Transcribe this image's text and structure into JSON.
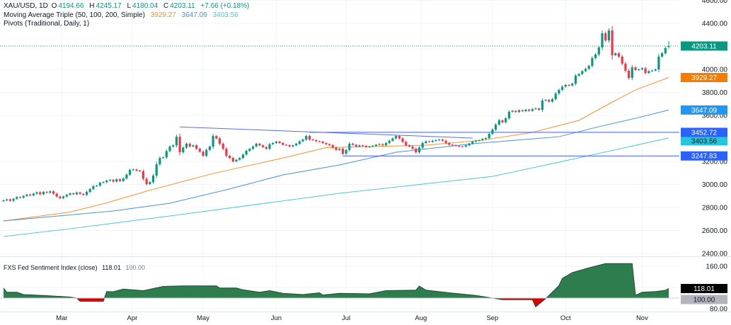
{
  "header": {
    "symbol": "XAU/USD, 1D",
    "open_label": "O",
    "open": "4194.66",
    "high_label": "H",
    "high": "4245.17",
    "low_label": "L",
    "low": "4180.04",
    "close_label": "C",
    "close": "4203.11",
    "change": "+7.66 (+0.18%)",
    "ma_title": "Moving Average Triple (50, 100, 200, Simple)",
    "ma50": "3929.27",
    "ma100": "3647.09",
    "ma200": "3403.56",
    "pivots_title": "Pivots (Traditional, Daily, 1)",
    "indicator_title": "FXS Fed Sentiment Index (close)",
    "indicator_value": "118.01",
    "indicator_base": "100.00"
  },
  "colors": {
    "up": "#089981",
    "down": "#f23645",
    "ma50": "#f7922d",
    "ma100": "#4a90d9",
    "ma200": "#4dc7d6",
    "pivot": "#3d5afe",
    "trendline": "#5b6fd6",
    "sentiment_up": "#2e7d4f",
    "sentiment_down": "#e00000"
  },
  "chart_data": [
    {
      "type": "candlestick",
      "title": "XAU/USD, 1D",
      "ylim": [
        2400,
        4600
      ],
      "y_ticks": [
        "4600.00",
        "4400.00",
        "4000.00",
        "3800.00",
        "3600.00",
        "3200.00",
        "3000.00",
        "2800.00",
        "2600.00",
        "2400.00"
      ],
      "x_ticks": [
        {
          "label": "Mar",
          "bar": 17.5
        },
        {
          "label": "Apr",
          "bar": 38.7
        },
        {
          "label": "May",
          "bar": 60
        },
        {
          "label": "Jun",
          "bar": 82
        },
        {
          "label": "Jul",
          "bar": 103
        },
        {
          "label": "Aug",
          "bar": 125.5
        },
        {
          "label": "Sep",
          "bar": 147
        },
        {
          "label": "Oct",
          "bar": 169
        },
        {
          "label": "Nov",
          "bar": 192
        }
      ],
      "last_bar": {
        "open": 4194.66,
        "high": 4245.17,
        "low": 4180.04,
        "close": 4203.11
      },
      "closes": [
        2862,
        2870,
        2858,
        2875,
        2890,
        2885,
        2900,
        2912,
        2905,
        2920,
        2932,
        2915,
        2935,
        2928,
        2940,
        2920,
        2895,
        2880,
        2895,
        2910,
        2923,
        2915,
        2930,
        2918,
        2910,
        2935,
        2960,
        2985,
        2990,
        3015,
        3020,
        3034,
        3040,
        3025,
        3045,
        3030,
        3052,
        3085,
        3126,
        3130,
        3120,
        3114,
        3050,
        3003,
        3020,
        3077,
        3175,
        3230,
        3235,
        3290,
        3329,
        3340,
        3415,
        3280,
        3320,
        3354,
        3330,
        3340,
        3310,
        3285,
        3249,
        3300,
        3329,
        3421,
        3400,
        3354,
        3310,
        3249,
        3230,
        3200,
        3215,
        3230,
        3260,
        3292,
        3310,
        3330,
        3354,
        3340,
        3325,
        3310,
        3350,
        3360,
        3372,
        3360,
        3345,
        3341,
        3330,
        3340,
        3354,
        3375,
        3390,
        3421,
        3390,
        3385,
        3375,
        3372,
        3360,
        3350,
        3341,
        3320,
        3300,
        3310,
        3268,
        3300,
        3354,
        3345,
        3330,
        3340,
        3335,
        3325,
        3329,
        3335,
        3345,
        3350,
        3341,
        3360,
        3380,
        3400,
        3421,
        3400,
        3370,
        3341,
        3330,
        3310,
        3280,
        3320,
        3360,
        3375,
        3370,
        3380,
        3385,
        3390,
        3380,
        3360,
        3345,
        3341,
        3335,
        3330,
        3329,
        3340,
        3355,
        3372,
        3380,
        3385,
        3395,
        3403,
        3440,
        3477,
        3520,
        3557,
        3540,
        3575,
        3631,
        3640,
        3630,
        3645,
        3637,
        3650,
        3640,
        3655,
        3661,
        3649,
        3729,
        3735,
        3720,
        3742,
        3790,
        3822,
        3850,
        3865,
        3860,
        3877,
        3945,
        3960,
        3985,
        4005,
        4031,
        4098,
        4130,
        4191,
        4314,
        4252,
        4338,
        4123,
        4140,
        4111,
        4050,
        3988,
        3926,
        4018,
        3995,
        4000,
        4010,
        3969,
        3985,
        3990,
        4000,
        4111,
        4140,
        4185,
        4203.11
      ],
      "moving_averages": [
        {
          "name": "MA 50",
          "value_label": "3929.27",
          "points": [
            [
              0,
              2683
            ],
            [
              20,
              2760
            ],
            [
              31,
              2840
            ],
            [
              44,
              2950
            ],
            [
              63,
              3095
            ],
            [
              84,
              3230
            ],
            [
              97,
              3320
            ],
            [
              110,
              3329
            ],
            [
              127,
              3341
            ],
            [
              144,
              3385
            ],
            [
              159,
              3452
            ],
            [
              173,
              3557
            ],
            [
              182,
              3700
            ],
            [
              190,
              3822
            ],
            [
              200,
              3929.27
            ]
          ]
        },
        {
          "name": "MA 100",
          "value_label": "3647.09",
          "points": [
            [
              0,
              2683
            ],
            [
              33,
              2769
            ],
            [
              50,
              2837
            ],
            [
              67,
              2954
            ],
            [
              84,
              3083
            ],
            [
              101,
              3169
            ],
            [
              118,
              3280
            ],
            [
              141,
              3354
            ],
            [
              167,
              3415
            ],
            [
              178,
              3495
            ],
            [
              190,
              3575
            ],
            [
              200,
              3647.09
            ]
          ]
        },
        {
          "name": "MA 200",
          "value_label": "3403.56",
          "points": [
            [
              0,
              2548
            ],
            [
              20,
              2615
            ],
            [
              50,
              2726
            ],
            [
              101,
              2923
            ],
            [
              147,
              3070
            ],
            [
              166,
              3188
            ],
            [
              200,
              3403.56
            ]
          ]
        }
      ],
      "pivot_levels": [
        {
          "value": 3452.72,
          "label": "3452.72",
          "from_bar": 92
        },
        {
          "value": 3247.83,
          "label": "3247.83",
          "from_bar": 102
        }
      ],
      "trendline": {
        "from": [
          53,
          3500
        ],
        "to": [
          141,
          3403
        ]
      },
      "last_price_label": "4203.11"
    },
    {
      "type": "area",
      "title": "FXS Fed Sentiment Index (close)",
      "baseline": 100,
      "y_ticks": [
        "160.00",
        "80.00"
      ],
      "value_label": "118.01",
      "baseline_label": "100.00",
      "points": [
        [
          0,
          119
        ],
        [
          1,
          111
        ],
        [
          4,
          111
        ],
        [
          6,
          106.7
        ],
        [
          12,
          105
        ],
        [
          20,
          102
        ],
        [
          22,
          100
        ],
        [
          23,
          94
        ],
        [
          30,
          94
        ],
        [
          31,
          112.4
        ],
        [
          33,
          112
        ],
        [
          36,
          117
        ],
        [
          42,
          114
        ],
        [
          48,
          122
        ],
        [
          54,
          123
        ],
        [
          64,
          123
        ],
        [
          65,
          119
        ],
        [
          70,
          119
        ],
        [
          72,
          115.6
        ],
        [
          77,
          111
        ],
        [
          80,
          114
        ],
        [
          84,
          109
        ],
        [
          90,
          106.7
        ],
        [
          95,
          110
        ],
        [
          96,
          105.8
        ],
        [
          101,
          109
        ],
        [
          110,
          108
        ],
        [
          115,
          114
        ],
        [
          124,
          115
        ],
        [
          125,
          122.7
        ],
        [
          127,
          115
        ],
        [
          134,
          110
        ],
        [
          142,
          105
        ],
        [
          146,
          101
        ],
        [
          150,
          97
        ],
        [
          159,
          97
        ],
        [
          160,
          83.6
        ],
        [
          163,
          99
        ],
        [
          167,
          123.6
        ],
        [
          168,
          137
        ],
        [
          171,
          148
        ],
        [
          176,
          157
        ],
        [
          181,
          165
        ],
        [
          189,
          165
        ],
        [
          190,
          105
        ],
        [
          192,
          111
        ],
        [
          196,
          112.4
        ],
        [
          199,
          114.7
        ],
        [
          200,
          118.01
        ]
      ]
    }
  ]
}
